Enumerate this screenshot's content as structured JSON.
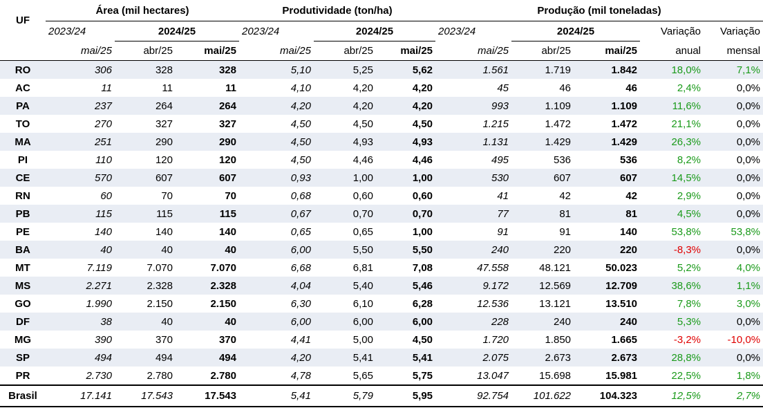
{
  "header": {
    "uf": "UF",
    "group_area": "Área (mil hectares)",
    "group_prod": "Produtividade (ton/ha)",
    "group_producao": "Produção (mil toneladas)",
    "year_prev": "2023/24",
    "year_curr": "2024/25",
    "month_prev": "mai/25",
    "month_abr": "abr/25",
    "month_mai": "mai/25",
    "var_anual_1": "Variação",
    "var_anual_2": "anual",
    "var_mensal_1": "Variação",
    "var_mensal_2": "mensal"
  },
  "colors": {
    "positive": "#1a9a1a",
    "negative": "#e00000",
    "shade": "#e9edf4"
  },
  "rows": [
    {
      "uf": "RO",
      "a1": "306",
      "a2": "328",
      "a3": "328",
      "p1": "5,10",
      "p2": "5,25",
      "p3": "5,62",
      "q1": "1.561",
      "q2": "1.719",
      "q3": "1.842",
      "va": "18,0%",
      "vm": "7,1%",
      "va_s": "pos",
      "vm_s": "pos"
    },
    {
      "uf": "AC",
      "a1": "11",
      "a2": "11",
      "a3": "11",
      "p1": "4,10",
      "p2": "4,20",
      "p3": "4,20",
      "q1": "45",
      "q2": "46",
      "q3": "46",
      "va": "2,4%",
      "vm": "0,0%",
      "va_s": "pos",
      "vm_s": "neu"
    },
    {
      "uf": "PA",
      "a1": "237",
      "a2": "264",
      "a3": "264",
      "p1": "4,20",
      "p2": "4,20",
      "p3": "4,20",
      "q1": "993",
      "q2": "1.109",
      "q3": "1.109",
      "va": "11,6%",
      "vm": "0,0%",
      "va_s": "pos",
      "vm_s": "neu"
    },
    {
      "uf": "TO",
      "a1": "270",
      "a2": "327",
      "a3": "327",
      "p1": "4,50",
      "p2": "4,50",
      "p3": "4,50",
      "q1": "1.215",
      "q2": "1.472",
      "q3": "1.472",
      "va": "21,1%",
      "vm": "0,0%",
      "va_s": "pos",
      "vm_s": "neu"
    },
    {
      "uf": "MA",
      "a1": "251",
      "a2": "290",
      "a3": "290",
      "p1": "4,50",
      "p2": "4,93",
      "p3": "4,93",
      "q1": "1.131",
      "q2": "1.429",
      "q3": "1.429",
      "va": "26,3%",
      "vm": "0,0%",
      "va_s": "pos",
      "vm_s": "neu"
    },
    {
      "uf": "PI",
      "a1": "110",
      "a2": "120",
      "a3": "120",
      "p1": "4,50",
      "p2": "4,46",
      "p3": "4,46",
      "q1": "495",
      "q2": "536",
      "q3": "536",
      "va": "8,2%",
      "vm": "0,0%",
      "va_s": "pos",
      "vm_s": "neu"
    },
    {
      "uf": "CE",
      "a1": "570",
      "a2": "607",
      "a3": "607",
      "p1": "0,93",
      "p2": "1,00",
      "p3": "1,00",
      "q1": "530",
      "q2": "607",
      "q3": "607",
      "va": "14,5%",
      "vm": "0,0%",
      "va_s": "pos",
      "vm_s": "neu"
    },
    {
      "uf": "RN",
      "a1": "60",
      "a2": "70",
      "a3": "70",
      "p1": "0,68",
      "p2": "0,60",
      "p3": "0,60",
      "q1": "41",
      "q2": "42",
      "q3": "42",
      "va": "2,9%",
      "vm": "0,0%",
      "va_s": "pos",
      "vm_s": "neu"
    },
    {
      "uf": "PB",
      "a1": "115",
      "a2": "115",
      "a3": "115",
      "p1": "0,67",
      "p2": "0,70",
      "p3": "0,70",
      "q1": "77",
      "q2": "81",
      "q3": "81",
      "va": "4,5%",
      "vm": "0,0%",
      "va_s": "pos",
      "vm_s": "neu"
    },
    {
      "uf": "PE",
      "a1": "140",
      "a2": "140",
      "a3": "140",
      "p1": "0,65",
      "p2": "0,65",
      "p3": "1,00",
      "q1": "91",
      "q2": "91",
      "q3": "140",
      "va": "53,8%",
      "vm": "53,8%",
      "va_s": "pos",
      "vm_s": "pos"
    },
    {
      "uf": "BA",
      "a1": "40",
      "a2": "40",
      "a3": "40",
      "p1": "6,00",
      "p2": "5,50",
      "p3": "5,50",
      "q1": "240",
      "q2": "220",
      "q3": "220",
      "va": "-8,3%",
      "vm": "0,0%",
      "va_s": "neg",
      "vm_s": "neu"
    },
    {
      "uf": "MT",
      "a1": "7.119",
      "a2": "7.070",
      "a3": "7.070",
      "p1": "6,68",
      "p2": "6,81",
      "p3": "7,08",
      "q1": "47.558",
      "q2": "48.121",
      "q3": "50.023",
      "va": "5,2%",
      "vm": "4,0%",
      "va_s": "pos",
      "vm_s": "pos"
    },
    {
      "uf": "MS",
      "a1": "2.271",
      "a2": "2.328",
      "a3": "2.328",
      "p1": "4,04",
      "p2": "5,40",
      "p3": "5,46",
      "q1": "9.172",
      "q2": "12.569",
      "q3": "12.709",
      "va": "38,6%",
      "vm": "1,1%",
      "va_s": "pos",
      "vm_s": "pos"
    },
    {
      "uf": "GO",
      "a1": "1.990",
      "a2": "2.150",
      "a3": "2.150",
      "p1": "6,30",
      "p2": "6,10",
      "p3": "6,28",
      "q1": "12.536",
      "q2": "13.121",
      "q3": "13.510",
      "va": "7,8%",
      "vm": "3,0%",
      "va_s": "pos",
      "vm_s": "pos"
    },
    {
      "uf": "DF",
      "a1": "38",
      "a2": "40",
      "a3": "40",
      "p1": "6,00",
      "p2": "6,00",
      "p3": "6,00",
      "q1": "228",
      "q2": "240",
      "q3": "240",
      "va": "5,3%",
      "vm": "0,0%",
      "va_s": "pos",
      "vm_s": "neu"
    },
    {
      "uf": "MG",
      "a1": "390",
      "a2": "370",
      "a3": "370",
      "p1": "4,41",
      "p2": "5,00",
      "p3": "4,50",
      "q1": "1.720",
      "q2": "1.850",
      "q3": "1.665",
      "va": "-3,2%",
      "vm": "-10,0%",
      "va_s": "neg",
      "vm_s": "neg"
    },
    {
      "uf": "SP",
      "a1": "494",
      "a2": "494",
      "a3": "494",
      "p1": "4,20",
      "p2": "5,41",
      "p3": "5,41",
      "q1": "2.075",
      "q2": "2.673",
      "q3": "2.673",
      "va": "28,8%",
      "vm": "0,0%",
      "va_s": "pos",
      "vm_s": "neu"
    },
    {
      "uf": "PR",
      "a1": "2.730",
      "a2": "2.780",
      "a3": "2.780",
      "p1": "4,78",
      "p2": "5,65",
      "p3": "5,75",
      "q1": "13.047",
      "q2": "15.698",
      "q3": "15.981",
      "va": "22,5%",
      "vm": "1,8%",
      "va_s": "pos",
      "vm_s": "pos"
    }
  ],
  "total": {
    "uf": "Brasil",
    "a1": "17.141",
    "a2": "17.543",
    "a3": "17.543",
    "p1": "5,41",
    "p2": "5,79",
    "p3": "5,95",
    "q1": "92.754",
    "q2": "101.622",
    "q3": "104.323",
    "va": "12,5%",
    "vm": "2,7%",
    "va_s": "pos",
    "vm_s": "pos"
  }
}
